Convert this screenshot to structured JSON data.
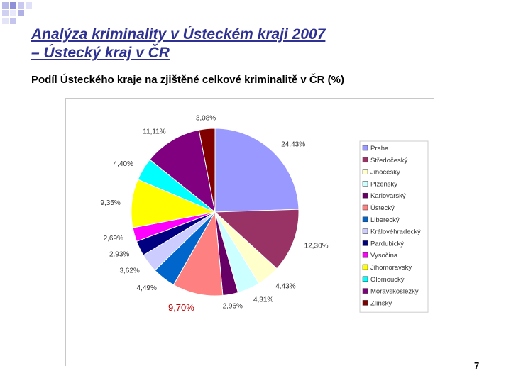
{
  "slide": {
    "title_line1": "Analýza kriminality v Ústeckém kraji 2007",
    "title_line2": "– Ústecký kraj v ČR",
    "subtitle": "Podíl Ústeckého kraje na zjištěné celkové kriminalitě v ČR (%)",
    "page_number": "7"
  },
  "chart_data": {
    "type": "pie",
    "title": "",
    "legend_position": "right",
    "categories": [
      "Praha",
      "Středočeský",
      "Jihočeský",
      "Plzeňský",
      "Karlovarský",
      "Ústecký",
      "Liberecký",
      "Královéhradecký",
      "Pardubický",
      "Vysočina",
      "Jihomoravský",
      "Olomoucký",
      "Moravskoslezký",
      "Zlínský"
    ],
    "values": [
      24.43,
      12.3,
      4.43,
      4.31,
      2.96,
      9.7,
      4.49,
      3.62,
      2.93,
      2.69,
      9.35,
      4.4,
      11.11,
      3.08
    ],
    "labels": [
      "24,43%",
      "12,30%",
      "4,43%",
      "4,31%",
      "2,96%",
      "9,70%",
      "4,49%",
      "3,62%",
      "2.93%",
      "2,69%",
      "9,35%",
      "4,40%",
      "11,11%",
      "3,08%"
    ],
    "colors": [
      "#9999ff",
      "#993366",
      "#ffffcc",
      "#ccffff",
      "#660066",
      "#ff8080",
      "#0066cc",
      "#ccccff",
      "#000080",
      "#ff00ff",
      "#ffff00",
      "#00ffff",
      "#800080",
      "#800000"
    ],
    "highlight_index": 5
  }
}
